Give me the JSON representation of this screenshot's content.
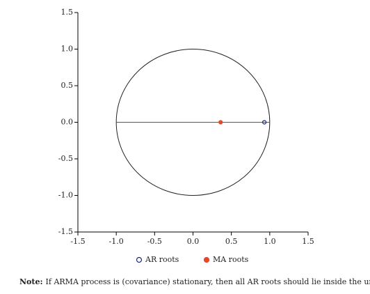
{
  "chart_data": {
    "type": "scatter",
    "x": [],
    "xlim": [
      -1.5,
      1.5
    ],
    "ylim": [
      -1.5,
      1.5
    ],
    "xticks": [
      -1.5,
      {
        "value": -1,
        "label": "-1.0"
      },
      -0.5,
      {
        "value": 0,
        "label": "0.0"
      },
      0.5,
      {
        "value": 1,
        "label": "1.0"
      },
      1.5
    ],
    "yticks": [
      1.5,
      {
        "value": 1,
        "label": "1.0"
      },
      0.5,
      {
        "value": 0,
        "label": "0.0"
      },
      -0.5,
      {
        "value": -1,
        "label": "-1.0"
      },
      -1.5
    ],
    "series": [
      {
        "name": "AR roots",
        "color": "#1f2a7a",
        "marker": "open",
        "x": [
          0.93
        ],
        "values": [
          0
        ]
      },
      {
        "name": "MA roots",
        "color": "#e8472b",
        "marker": "filled",
        "x": [
          0.36
        ],
        "values": [
          0
        ]
      }
    ],
    "note_label": "Note:",
    "note": "If ARMA process is (covariance) stationary, then all AR roots should lie inside the unit circle."
  }
}
